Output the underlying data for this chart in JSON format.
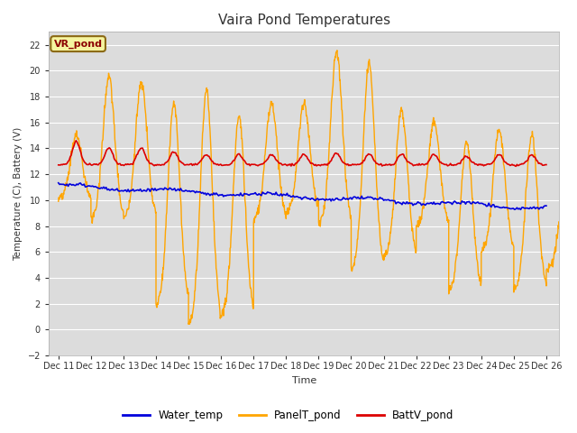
{
  "title": "Vaira Pond Temperatures",
  "ylabel": "Temperature (C), Battery (V)",
  "xlabel": "Time",
  "ylim": [
    -2,
    23
  ],
  "yticks": [
    -2,
    0,
    2,
    4,
    6,
    8,
    10,
    12,
    14,
    16,
    18,
    20,
    22
  ],
  "bg_color": "#dcdcdc",
  "fig_color": "#ffffff",
  "grid_color": "#ffffff",
  "water_temp_color": "#0000dd",
  "panel_temp_color": "#FFA500",
  "batt_color": "#dd0000",
  "annotation_text": "VR_pond",
  "annotation_bg": "#f5f5a0",
  "annotation_border": "#8B6914",
  "legend_items": [
    "Water_temp",
    "PanelT_pond",
    "BattV_pond"
  ],
  "legend_colors": [
    "#0000dd",
    "#FFA500",
    "#dd0000"
  ],
  "xtick_labels": [
    "Dec 11",
    "Dec 12",
    "Dec 13",
    "Dec 14",
    "Dec 15",
    "Dec 16",
    "Dec 17",
    "Dec 18",
    "Dec 19",
    "Dec 20",
    "Dec 21",
    "Dec 22",
    "Dec 23",
    "Dec 24",
    "Dec 25",
    "Dec 26"
  ]
}
